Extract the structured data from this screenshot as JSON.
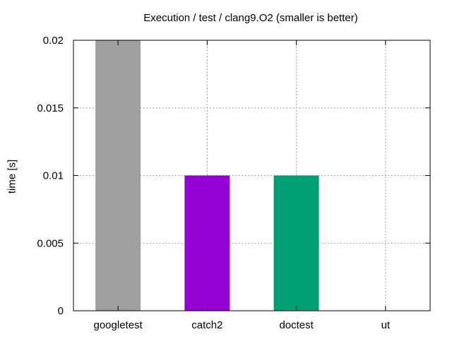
{
  "chart_data": {
    "type": "bar",
    "title": "Execution / test / clang9.O2 (smaller is better)",
    "xlabel": "",
    "ylabel": "time [s]",
    "categories": [
      "googletest",
      "catch2",
      "doctest",
      "ut"
    ],
    "values": [
      0.02,
      0.01,
      0.01,
      0
    ],
    "colors": [
      "#a0a0a0",
      "#9400d3",
      "#009e73",
      "#56b4e9"
    ],
    "ylim": [
      0,
      0.02
    ],
    "yticks": [
      0,
      0.005,
      0.01,
      0.015,
      0.02
    ],
    "ytick_labels": [
      "0",
      "0.005",
      "0.01",
      "0.015",
      "0.02"
    ],
    "grid": true,
    "grid_style": "dotted"
  }
}
